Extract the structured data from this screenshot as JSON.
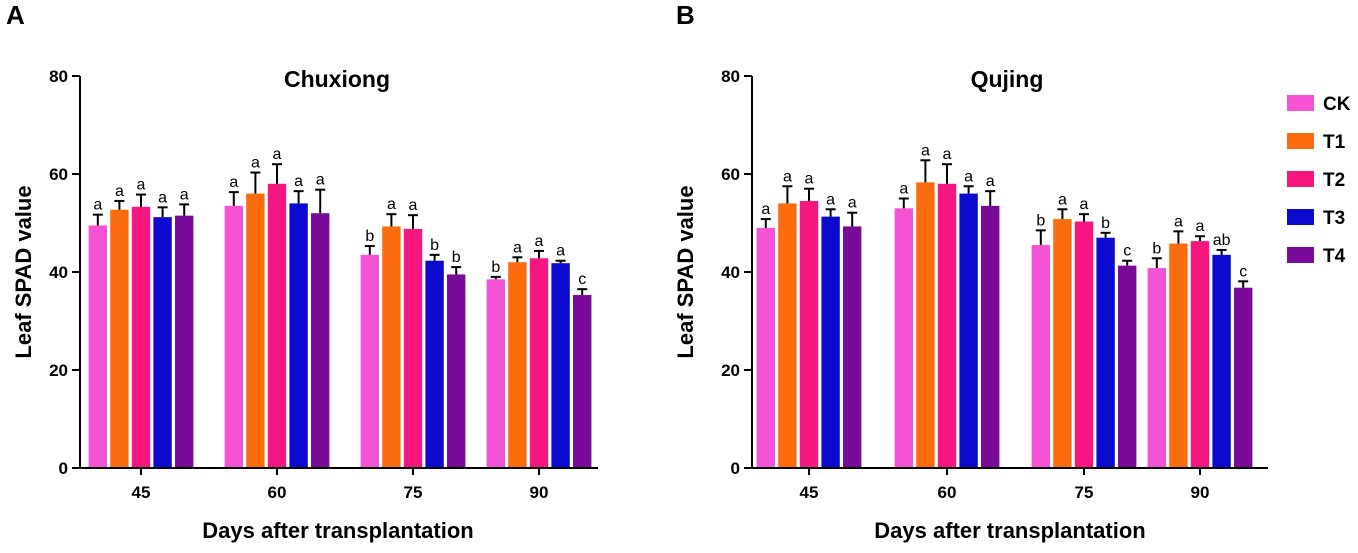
{
  "panels": [
    {
      "letter": "A"
    },
    {
      "letter": "B"
    }
  ],
  "legend": [
    {
      "name": "CK",
      "color": "#f553d6"
    },
    {
      "name": "T1",
      "color": "#fb6c0f"
    },
    {
      "name": "T2",
      "color": "#f5167f"
    },
    {
      "name": "T3",
      "color": "#0b0bd0"
    },
    {
      "name": "T4",
      "color": "#7a0a9a"
    }
  ],
  "chart_data": [
    {
      "type": "bar",
      "title": "Chuxiong",
      "xlabel": "Days after transplantation",
      "ylabel": "Leaf SPAD value",
      "ylim": [
        0,
        80
      ],
      "yticks": [
        "0",
        "20",
        "40",
        "60",
        "80"
      ],
      "categories": [
        "45",
        "60",
        "75",
        "90"
      ],
      "series": [
        {
          "name": "CK",
          "color": "#f553d6",
          "values": [
            49.5,
            53.5,
            43.5,
            38.5
          ],
          "errors": [
            2.2,
            2.8,
            1.8,
            0.5
          ],
          "labels": [
            "a",
            "a",
            "b",
            "b"
          ]
        },
        {
          "name": "T1",
          "color": "#fb6c0f",
          "values": [
            52.7,
            56.0,
            49.3,
            42.0
          ],
          "errors": [
            1.8,
            4.3,
            2.5,
            1.0
          ],
          "labels": [
            "a",
            "a",
            "a",
            "a"
          ]
        },
        {
          "name": "T2",
          "color": "#f5167f",
          "values": [
            53.3,
            58.0,
            48.8,
            42.8
          ],
          "errors": [
            2.5,
            4.0,
            2.8,
            1.5
          ],
          "labels": [
            "a",
            "a",
            "a",
            "a"
          ]
        },
        {
          "name": "T3",
          "color": "#0b0bd0",
          "values": [
            51.2,
            54.0,
            42.3,
            41.8
          ],
          "errors": [
            2.0,
            2.5,
            1.2,
            0.5
          ],
          "labels": [
            "a",
            "a",
            "b",
            "a"
          ]
        },
        {
          "name": "T4",
          "color": "#7a0a9a",
          "values": [
            51.5,
            52.0,
            39.5,
            35.3
          ],
          "errors": [
            2.3,
            4.8,
            1.5,
            1.2
          ],
          "labels": [
            "a",
            "a",
            "b",
            "c"
          ]
        }
      ]
    },
    {
      "type": "bar",
      "title": "Qujing",
      "xlabel": "Days after transplantation",
      "ylabel": "Leaf SPAD value",
      "ylim": [
        0,
        80
      ],
      "yticks": [
        "0",
        "20",
        "40",
        "60",
        "80"
      ],
      "categories": [
        "45",
        "60",
        "75",
        "90"
      ],
      "series": [
        {
          "name": "CK",
          "color": "#f553d6",
          "values": [
            49.0,
            53.0,
            45.5,
            40.8
          ],
          "errors": [
            1.8,
            2.0,
            3.0,
            2.0
          ],
          "labels": [
            "a",
            "a",
            "b",
            "b"
          ]
        },
        {
          "name": "T1",
          "color": "#fb6c0f",
          "values": [
            54.0,
            58.3,
            50.8,
            45.8
          ],
          "errors": [
            3.5,
            4.5,
            2.0,
            2.5
          ],
          "labels": [
            "a",
            "a",
            "a",
            "a"
          ]
        },
        {
          "name": "T2",
          "color": "#f5167f",
          "values": [
            54.5,
            58.0,
            50.3,
            46.3
          ],
          "errors": [
            2.5,
            4.0,
            1.5,
            1.0
          ],
          "labels": [
            "a",
            "a",
            "a",
            "a"
          ]
        },
        {
          "name": "T3",
          "color": "#0b0bd0",
          "values": [
            51.3,
            56.0,
            47.0,
            43.5
          ],
          "errors": [
            1.5,
            1.5,
            1.0,
            1.0
          ],
          "labels": [
            "a",
            "a",
            "b",
            "ab"
          ]
        },
        {
          "name": "T4",
          "color": "#7a0a9a",
          "values": [
            49.3,
            53.5,
            41.3,
            36.8
          ],
          "errors": [
            2.8,
            3.0,
            1.0,
            1.3
          ],
          "labels": [
            "a",
            "a",
            "c",
            "c"
          ]
        }
      ]
    }
  ]
}
